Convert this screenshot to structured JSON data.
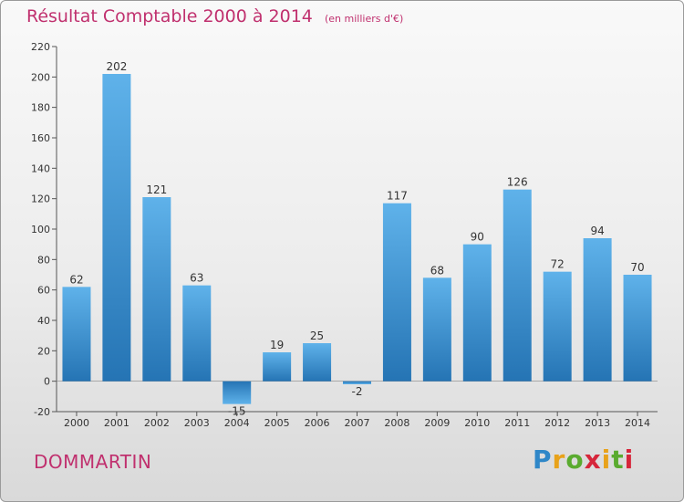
{
  "header": {
    "title": "Résultat Comptable 2000 à 2014",
    "unit": "(en milliers d'€)"
  },
  "footer": {
    "commune": "DOMMARTIN",
    "logo": "Proxiti"
  },
  "colors": {
    "title": "#c0306e",
    "bar_light": "#5fb2ea",
    "bar_dark": "#2574b4",
    "axis": "#555555"
  },
  "chart_data": {
    "type": "bar",
    "title": "Résultat Comptable 2000 à 2014",
    "subtitle": "(en milliers d'€)",
    "xlabel": "",
    "ylabel": "",
    "categories": [
      "2000",
      "2001",
      "2002",
      "2003",
      "2004",
      "2005",
      "2006",
      "2007",
      "2008",
      "2009",
      "2010",
      "2011",
      "2012",
      "2013",
      "2014"
    ],
    "values": [
      62,
      202,
      121,
      63,
      -15,
      19,
      25,
      -2,
      117,
      68,
      90,
      126,
      72,
      94,
      70
    ],
    "ylim": [
      -20,
      220
    ],
    "yticks": [
      -20,
      0,
      20,
      40,
      60,
      80,
      100,
      120,
      140,
      160,
      180,
      200,
      220
    ],
    "grid": false,
    "data_labels": true
  }
}
